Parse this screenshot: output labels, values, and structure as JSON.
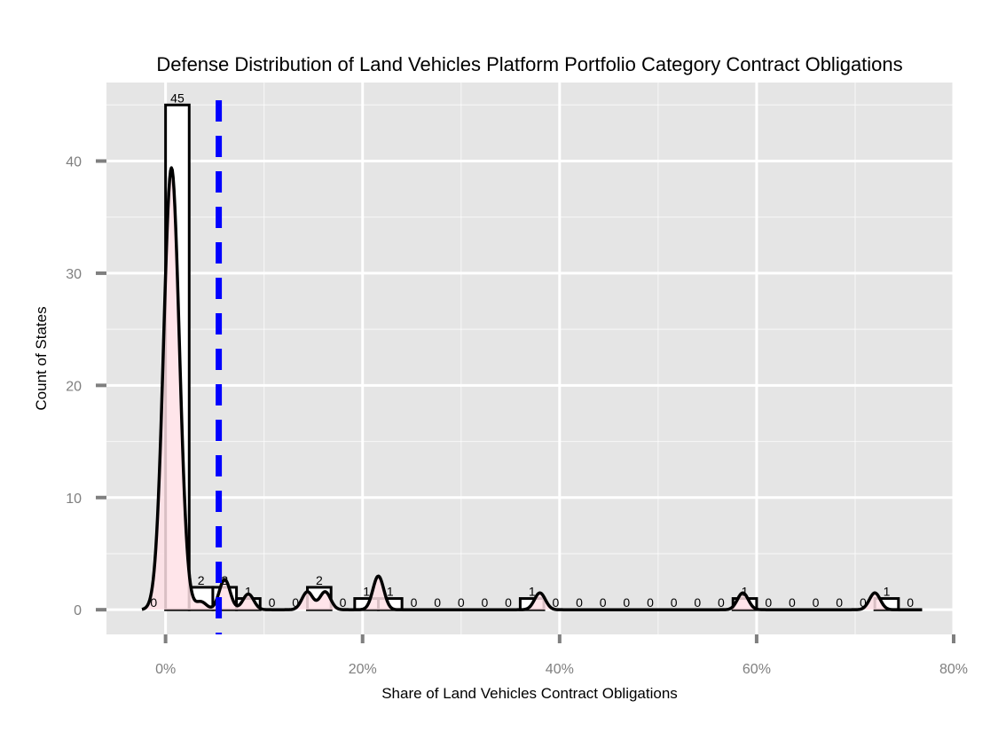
{
  "chart_data": {
    "type": "histogram",
    "title": "Defense Distribution of Land  Vehicles Platform Portfolio Category Contract Obligations",
    "xlabel": "Share of Land Vehicles Contract Obligations",
    "ylabel": "Count of States",
    "xlim": [
      -6,
      80
    ],
    "ylim": [
      -2.2,
      47
    ],
    "x_ticks": [
      0,
      20,
      40,
      60,
      80
    ],
    "x_tick_labels": [
      "0%",
      "20%",
      "40%",
      "60%",
      "80%"
    ],
    "y_ticks": [
      0,
      10,
      20,
      30,
      40
    ],
    "y_tick_labels": [
      "0",
      "10",
      "20",
      "30",
      "40"
    ],
    "grid": true,
    "bin_width": 2.4,
    "bin_centers": [
      -1.2,
      1.2,
      3.6,
      6.0,
      8.4,
      10.8,
      13.2,
      15.6,
      18.0,
      20.4,
      22.8,
      25.2,
      27.6,
      30.0,
      32.4,
      34.8,
      37.2,
      39.6,
      42.0,
      44.4,
      46.8,
      49.2,
      51.6,
      54.0,
      56.4,
      58.8,
      61.2,
      63.6,
      66.0,
      68.4,
      70.8,
      73.2,
      75.6
    ],
    "counts": [
      0,
      45,
      2,
      2,
      1,
      0,
      0,
      2,
      0,
      1,
      1,
      0,
      0,
      0,
      0,
      0,
      1,
      0,
      0,
      0,
      0,
      0,
      0,
      0,
      0,
      1,
      0,
      0,
      0,
      0,
      0,
      1,
      0
    ],
    "mean_line_x": 5.4,
    "density_peaks": [
      {
        "x": 0.6,
        "y": 39.4
      },
      {
        "x": 3.6,
        "y": 0.7
      },
      {
        "x": 6.0,
        "y": 2.7
      },
      {
        "x": 8.4,
        "y": 1.4
      },
      {
        "x": 14.4,
        "y": 1.6
      },
      {
        "x": 16.2,
        "y": 1.6
      },
      {
        "x": 21.6,
        "y": 3.0
      },
      {
        "x": 38.0,
        "y": 1.5
      },
      {
        "x": 58.6,
        "y": 1.5
      },
      {
        "x": 72.0,
        "y": 1.5
      }
    ],
    "colors": {
      "panel_bg": "#e5e5e5",
      "grid": "#ffffff",
      "bar_fill": "#ffffff",
      "bar_stroke": "#000000",
      "density_fill": "#ffe0e6",
      "density_stroke": "#000000",
      "mean_line": "#0000ff",
      "tick": "#7f7f7f"
    }
  }
}
